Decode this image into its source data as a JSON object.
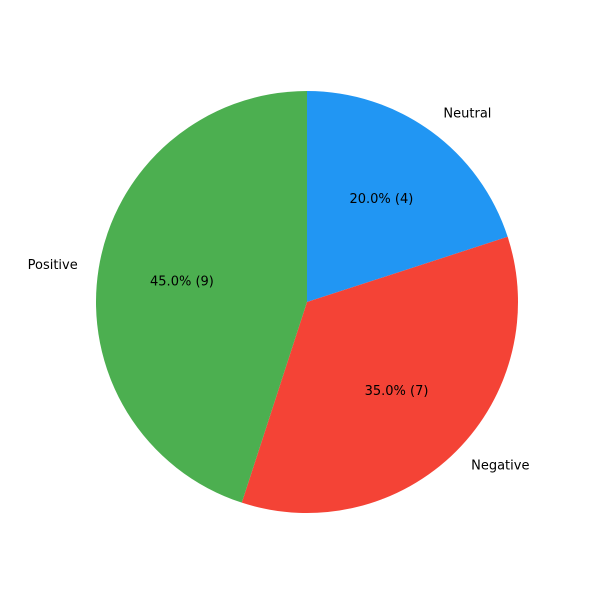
{
  "chart_data": {
    "type": "pie",
    "title": "",
    "start_angle_deg": 90,
    "direction": "clockwise",
    "slices": [
      {
        "label": "Neutral",
        "count": 4,
        "percent": 20.0,
        "percent_text": "20.0% (4)",
        "color": "#2196F3"
      },
      {
        "label": "Negative",
        "count": 7,
        "percent": 35.0,
        "percent_text": "35.0% (7)",
        "color": "#F44336"
      },
      {
        "label": "Positive",
        "count": 9,
        "percent": 45.0,
        "percent_text": "45.0% (9)",
        "color": "#4CAF50"
      }
    ]
  }
}
